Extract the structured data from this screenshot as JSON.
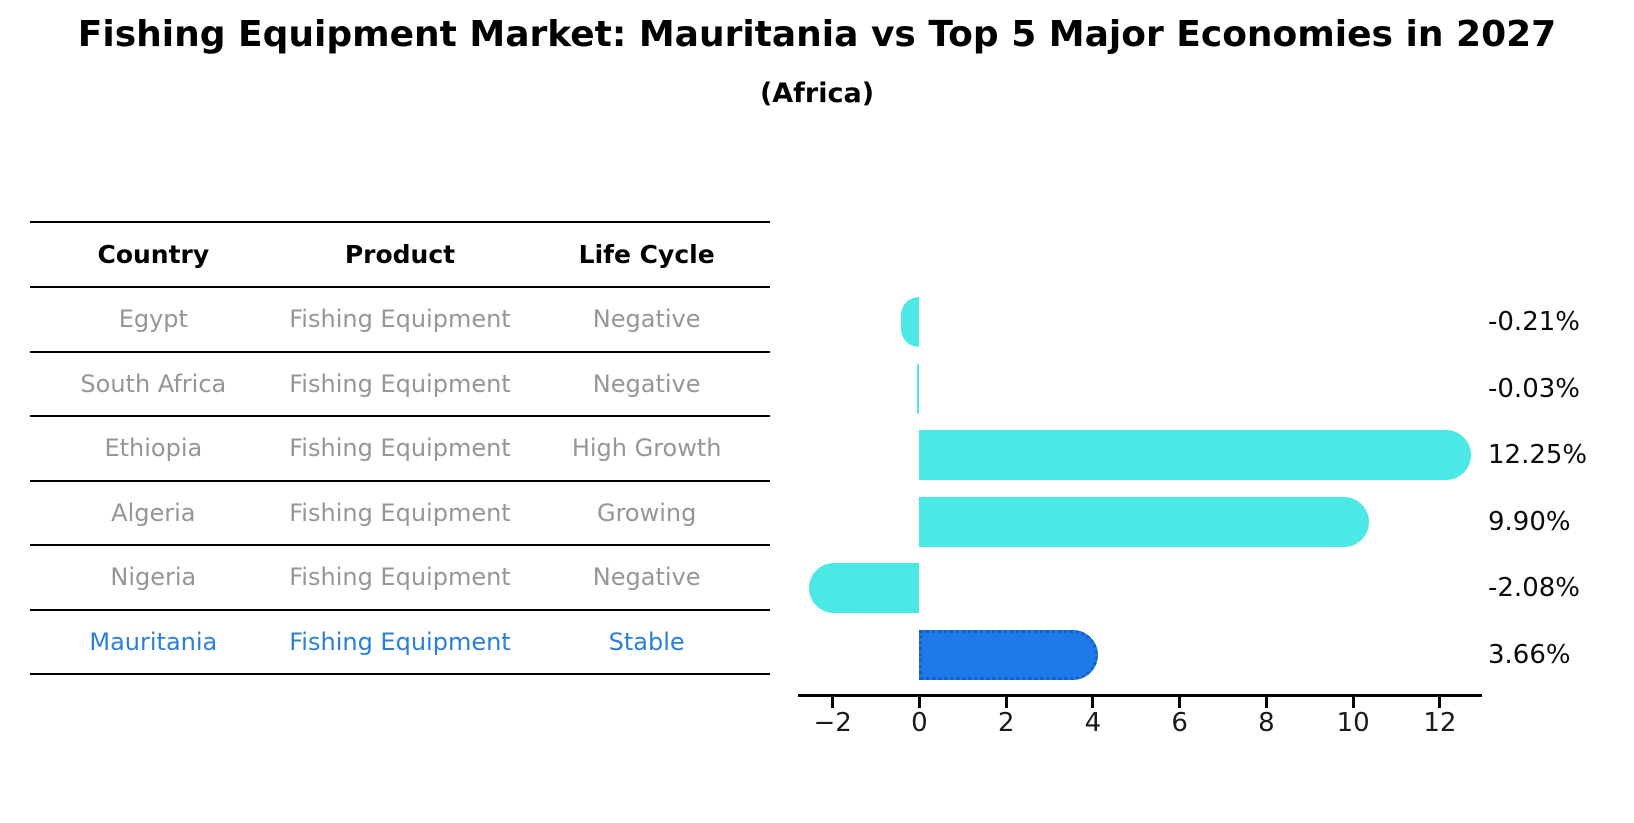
{
  "header": {
    "title": "Fishing Equipment Market: Mauritania vs Top 5 Major Economies in 2027",
    "subtitle": "(Africa)"
  },
  "table": {
    "columns": [
      "Country",
      "Product",
      "Life Cycle"
    ],
    "rows": [
      {
        "country": "Egypt",
        "product": "Fishing Equipment",
        "life_cycle": "Negative",
        "highlight": false
      },
      {
        "country": "South Africa",
        "product": "Fishing Equipment",
        "life_cycle": "Negative",
        "highlight": false
      },
      {
        "country": "Ethiopia",
        "product": "Fishing Equipment",
        "life_cycle": "High Growth",
        "highlight": false
      },
      {
        "country": "Algeria",
        "product": "Fishing Equipment",
        "life_cycle": "Growing",
        "highlight": false
      },
      {
        "country": "Nigeria",
        "product": "Fishing Equipment",
        "life_cycle": "Negative",
        "highlight": false
      },
      {
        "country": "Mauritania",
        "product": "Fishing Equipment",
        "life_cycle": "Stable",
        "highlight": true
      }
    ]
  },
  "chart_data": {
    "type": "bar",
    "orientation": "horizontal",
    "title": "Fishing Equipment Market: Mauritania vs Top 5 Major Economies in 2027",
    "subtitle": "(Africa)",
    "categories": [
      "Egypt",
      "South Africa",
      "Ethiopia",
      "Algeria",
      "Nigeria",
      "Mauritania"
    ],
    "values": [
      -0.21,
      -0.03,
      12.25,
      9.9,
      -2.08,
      3.66
    ],
    "value_labels": [
      "-0.21%",
      "-0.03%",
      "12.25%",
      "9.90%",
      "-2.08%",
      "3.66%"
    ],
    "highlight_index": 5,
    "x_ticks": [
      -2,
      0,
      2,
      4,
      6,
      8,
      10,
      12
    ],
    "x_tick_labels": [
      "−2",
      "0",
      "2",
      "4",
      "6",
      "8",
      "10",
      "12"
    ],
    "xlim": [
      -2.8,
      12.97
    ],
    "grid": false,
    "legend": "none",
    "bar_color": "#4BE8E6",
    "highlight_bar_color": "#1E7AEB",
    "highlight_bar_border": "#1560BD",
    "label_color": "#0a0a0a",
    "axis_color": "#000000"
  },
  "colors": {
    "table_text": "#969696",
    "table_header_text": "#000000",
    "highlight_text": "#2980D9",
    "background": "#ffffff"
  }
}
